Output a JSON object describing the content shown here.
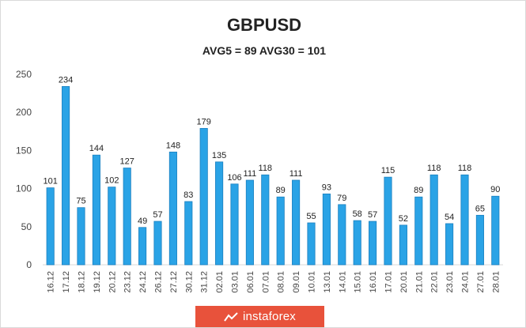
{
  "colors": {
    "bar_fill": "#2aa3e6",
    "bar_edge": "#1a7fbf",
    "grid": "#d9d9d9",
    "watermark_bg": "#e8523b"
  },
  "watermark": {
    "text": "instaforex",
    "icon": "instaforex-logo-icon"
  },
  "chart_data": {
    "type": "bar",
    "title": "GBPUSD",
    "subtitle": "AVG5 = 89 AVG30 = 101",
    "xlabel": "",
    "ylabel": "",
    "ylim": [
      0,
      250
    ],
    "yticks": [
      0,
      50,
      100,
      150,
      200,
      250
    ],
    "grid": false,
    "legend": "none",
    "categories": [
      "16.12",
      "17.12",
      "18.12",
      "19.12",
      "20.12",
      "23.12",
      "24.12",
      "26.12",
      "27.12",
      "30.12",
      "31.12",
      "02.01",
      "03.01",
      "06.01",
      "07.01",
      "08.01",
      "09.01",
      "10.01",
      "13.01",
      "14.01",
      "15.01",
      "16.01",
      "17.01",
      "20.01",
      "21.01",
      "22.01",
      "23.01",
      "24.01",
      "27.01",
      "28.01"
    ],
    "values": [
      101,
      234,
      75,
      144,
      102,
      127,
      49,
      57,
      148,
      83,
      179,
      135,
      106,
      111,
      118,
      89,
      111,
      55,
      93,
      79,
      58,
      57,
      115,
      52,
      89,
      118,
      54,
      118,
      65,
      90
    ]
  }
}
